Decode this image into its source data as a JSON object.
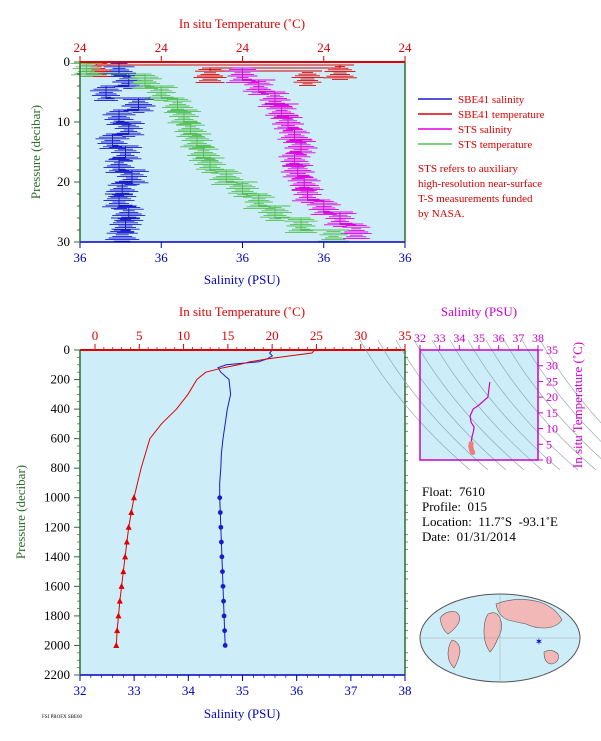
{
  "top_panel": {
    "top_axis_title": "In situ Temperature (˚C)",
    "bottom_axis_title": "Salinity (PSU)",
    "left_axis_title": "Pressure (decibar)",
    "top_ticks": [
      "24",
      "24",
      "24",
      "24",
      "24"
    ],
    "bottom_ticks": [
      "36",
      "36",
      "36",
      "36",
      "36"
    ],
    "left_ticks": [
      "0",
      "10",
      "20",
      "30"
    ],
    "legend": [
      {
        "label": "SBE41 salinity",
        "color": "#1a1acc"
      },
      {
        "label": "SBE41 temperature",
        "color": "#e00000"
      },
      {
        "label": "STS salinity",
        "color": "#e000e0"
      },
      {
        "label": "STS temperature",
        "color": "#55c055"
      }
    ],
    "note_lines": [
      "STS refers to auxiliary",
      "high-resolution near-surface",
      "T-S measurements funded",
      "by NASA."
    ]
  },
  "main_panel": {
    "top_axis_title": "In situ Temperature (˚C)",
    "bottom_axis_title": "Salinity (PSU)",
    "left_axis_title": "Pressure (decibar)",
    "top_ticks": [
      "0",
      "5",
      "10",
      "15",
      "20",
      "25",
      "30",
      "35"
    ],
    "bottom_ticks": [
      "32",
      "33",
      "34",
      "35",
      "36",
      "37",
      "38"
    ],
    "left_ticks": [
      "0",
      "200",
      "400",
      "600",
      "800",
      "1000",
      "1200",
      "1400",
      "1600",
      "1800",
      "2000",
      "2200"
    ]
  },
  "ts_panel": {
    "top_axis_title": "Salinity (PSU)",
    "right_axis_title": "In situ Temperature (˚C)",
    "top_ticks": [
      "32",
      "33",
      "34",
      "35",
      "36",
      "37",
      "38"
    ],
    "right_ticks": [
      "0",
      "5",
      "10",
      "15",
      "20",
      "25",
      "30",
      "35"
    ]
  },
  "float_info": {
    "float_line": "Float:  7610",
    "profile_line": "Profile:  015",
    "location_line": "Location:  11.7˚S  -93.1˚E",
    "date_line": "Date:  01/31/2014"
  },
  "footer_small": "FSI PROFX SBE60",
  "colors": {
    "plot_bg": "#cdeef8",
    "salinity": "#1a1acc",
    "temperature": "#e00000",
    "sts_salinity": "#e000e0",
    "sts_temperature": "#55c055",
    "axis_red": "#e00000",
    "axis_magenta": "#cc00cc",
    "axis_blue": "#0000c0",
    "axis_green": "#2e6b2e"
  },
  "chart_data": [
    {
      "type": "line",
      "panel": "top_panel",
      "xlabel": "Salinity (PSU)",
      "ylabel": "Pressure (decibar)",
      "ylim": [
        30,
        0
      ],
      "series": [
        {
          "name": "SBE41 salinity",
          "pressure": [
            0,
            2,
            4,
            6,
            8,
            10,
            12,
            14,
            16,
            18,
            20,
            22,
            24,
            26,
            28
          ],
          "x_frac": [
            0.12,
            0.15,
            0.08,
            0.18,
            0.12,
            0.15,
            0.1,
            0.14,
            0.12,
            0.16,
            0.13,
            0.12,
            0.15,
            0.14,
            0.13
          ]
        },
        {
          "name": "SBE41 temperature",
          "pressure": [
            0,
            0.5,
            1,
            1.5
          ],
          "x_frac": [
            0.05,
            0.8,
            0.4,
            0.7
          ]
        },
        {
          "name": "STS salinity",
          "pressure": [
            1,
            3,
            5,
            7,
            9,
            11,
            13,
            15,
            17,
            19,
            21,
            23,
            25,
            27
          ],
          "x_frac": [
            0.5,
            0.55,
            0.6,
            0.62,
            0.64,
            0.66,
            0.68,
            0.66,
            0.67,
            0.69,
            0.7,
            0.75,
            0.8,
            0.85
          ]
        },
        {
          "name": "STS temperature",
          "pressure": [
            0,
            2,
            4,
            6,
            8,
            10,
            12,
            14,
            16,
            18,
            20,
            22,
            24,
            26,
            28
          ],
          "x_frac": [
            0.02,
            0.2,
            0.25,
            0.3,
            0.32,
            0.34,
            0.36,
            0.38,
            0.4,
            0.45,
            0.5,
            0.55,
            0.6,
            0.68,
            0.78
          ]
        }
      ]
    },
    {
      "type": "line",
      "panel": "main_panel",
      "xlabel": "Salinity (PSU)",
      "ylabel": "Pressure (decibar)",
      "xlim": [
        32,
        38
      ],
      "ylim": [
        2200,
        0
      ],
      "series": [
        {
          "name": "Salinity",
          "axis": "bottom",
          "values": [
            [
              35.55,
              0
            ],
            [
              35.5,
              20
            ],
            [
              35.55,
              40
            ],
            [
              35.45,
              60
            ],
            [
              35.3,
              80
            ],
            [
              34.7,
              100
            ],
            [
              34.55,
              120
            ],
            [
              34.6,
              150
            ],
            [
              34.75,
              200
            ],
            [
              34.78,
              300
            ],
            [
              34.72,
              400
            ],
            [
              34.68,
              500
            ],
            [
              34.64,
              600
            ],
            [
              34.61,
              700
            ],
            [
              34.6,
              800
            ],
            [
              34.58,
              900
            ],
            [
              34.58,
              1000
            ],
            [
              34.59,
              1100
            ],
            [
              34.6,
              1200
            ],
            [
              34.61,
              1300
            ],
            [
              34.62,
              1400
            ],
            [
              34.63,
              1500
            ],
            [
              34.64,
              1600
            ],
            [
              34.65,
              1700
            ],
            [
              34.66,
              1800
            ],
            [
              34.67,
              1900
            ],
            [
              34.68,
              2000
            ]
          ]
        },
        {
          "name": "Temperature",
          "axis": "top",
          "xlim": [
            0,
            35
          ],
          "values": [
            [
              24.8,
              0
            ],
            [
              24.5,
              20
            ],
            [
              22,
              40
            ],
            [
              19.5,
              60
            ],
            [
              17.5,
              80
            ],
            [
              16.2,
              100
            ],
            [
              14.5,
              120
            ],
            [
              12.5,
              150
            ],
            [
              11.5,
              200
            ],
            [
              10.5,
              300
            ],
            [
              9.2,
              400
            ],
            [
              7.5,
              500
            ],
            [
              6.2,
              600
            ],
            [
              5.7,
              700
            ],
            [
              5.2,
              800
            ],
            [
              4.8,
              900
            ],
            [
              4.4,
              1000
            ],
            [
              4.1,
              1100
            ],
            [
              3.8,
              1200
            ],
            [
              3.6,
              1300
            ],
            [
              3.4,
              1400
            ],
            [
              3.2,
              1500
            ],
            [
              3.0,
              1600
            ],
            [
              2.8,
              1700
            ],
            [
              2.65,
              1800
            ],
            [
              2.5,
              1900
            ],
            [
              2.4,
              2000
            ]
          ]
        }
      ]
    },
    {
      "type": "scatter",
      "panel": "ts_panel",
      "xlabel": "Salinity (PSU)",
      "ylabel": "In situ Temperature (˚C)",
      "xlim": [
        32,
        38
      ],
      "ylim": [
        0,
        35
      ],
      "values": [
        [
          35.55,
          24.8
        ],
        [
          35.45,
          20
        ],
        [
          35.0,
          17.5
        ],
        [
          34.7,
          16.2
        ],
        [
          34.55,
          14
        ],
        [
          34.6,
          12
        ],
        [
          34.75,
          10.5
        ],
        [
          34.72,
          9.2
        ],
        [
          34.65,
          7.5
        ],
        [
          34.62,
          6.2
        ],
        [
          34.6,
          5.2
        ],
        [
          34.58,
          4.4
        ],
        [
          34.6,
          3.8
        ],
        [
          34.62,
          3.2
        ],
        [
          34.65,
          2.8
        ],
        [
          34.68,
          2.4
        ]
      ]
    }
  ]
}
